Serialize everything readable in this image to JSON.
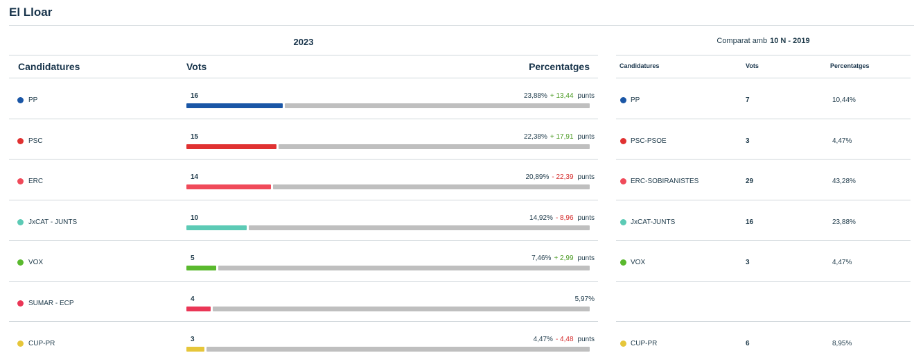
{
  "page": {
    "title": "El Lloar"
  },
  "current": {
    "year": "2023",
    "headers": {
      "party": "Candidatures",
      "votes": "Vots",
      "percent": "Percentatges"
    },
    "unit": "punts",
    "rows": [
      {
        "party": "PP",
        "color": "#1a56a6",
        "votes": "16",
        "percent": "23,88%",
        "change": "+ 13,44",
        "trend": "pos",
        "share": 0.2388
      },
      {
        "party": "PSC",
        "color": "#e03131",
        "votes": "15",
        "percent": "22,38%",
        "change": "+ 17,91",
        "trend": "pos",
        "share": 0.2238
      },
      {
        "party": "ERC",
        "color": "#f04a5a",
        "votes": "14",
        "percent": "20,89%",
        "change": "- 22,39",
        "trend": "neg",
        "share": 0.2089
      },
      {
        "party": "JxCAT - JUNTS",
        "color": "#5ccab5",
        "votes": "10",
        "percent": "14,92%",
        "change": "- 8,96",
        "trend": "neg",
        "share": 0.1492
      },
      {
        "party": "VOX",
        "color": "#5ab92e",
        "votes": "5",
        "percent": "7,46%",
        "change": "+ 2,99",
        "trend": "pos",
        "share": 0.0746
      },
      {
        "party": "SUMAR - ECP",
        "color": "#ea3656",
        "votes": "4",
        "percent": "5,97%",
        "change": "",
        "trend": "",
        "share": 0.0597
      },
      {
        "party": "CUP-PR",
        "color": "#e6c63a",
        "votes": "3",
        "percent": "4,47%",
        "change": "- 4,48",
        "trend": "neg",
        "share": 0.0447
      }
    ]
  },
  "comparison": {
    "label": "Comparat amb",
    "election": "10 N - 2019",
    "headers": {
      "party": "Candidatures",
      "votes": "Vots",
      "percent": "Percentatges"
    },
    "rows": [
      {
        "party": "PP",
        "color": "#1a56a6",
        "votes": "7",
        "percent": "10,44%"
      },
      {
        "party": "PSC-PSOE",
        "color": "#e03131",
        "votes": "3",
        "percent": "4,47%"
      },
      {
        "party": "ERC-SOBIRANISTES",
        "color": "#f04a5a",
        "votes": "29",
        "percent": "43,28%"
      },
      {
        "party": "JxCAT-JUNTS",
        "color": "#5ccab5",
        "votes": "16",
        "percent": "23,88%"
      },
      {
        "party": "VOX",
        "color": "#5ab92e",
        "votes": "3",
        "percent": "4,47%"
      },
      null,
      {
        "party": "CUP-PR",
        "color": "#e6c63a",
        "votes": "6",
        "percent": "8,95%"
      }
    ]
  }
}
